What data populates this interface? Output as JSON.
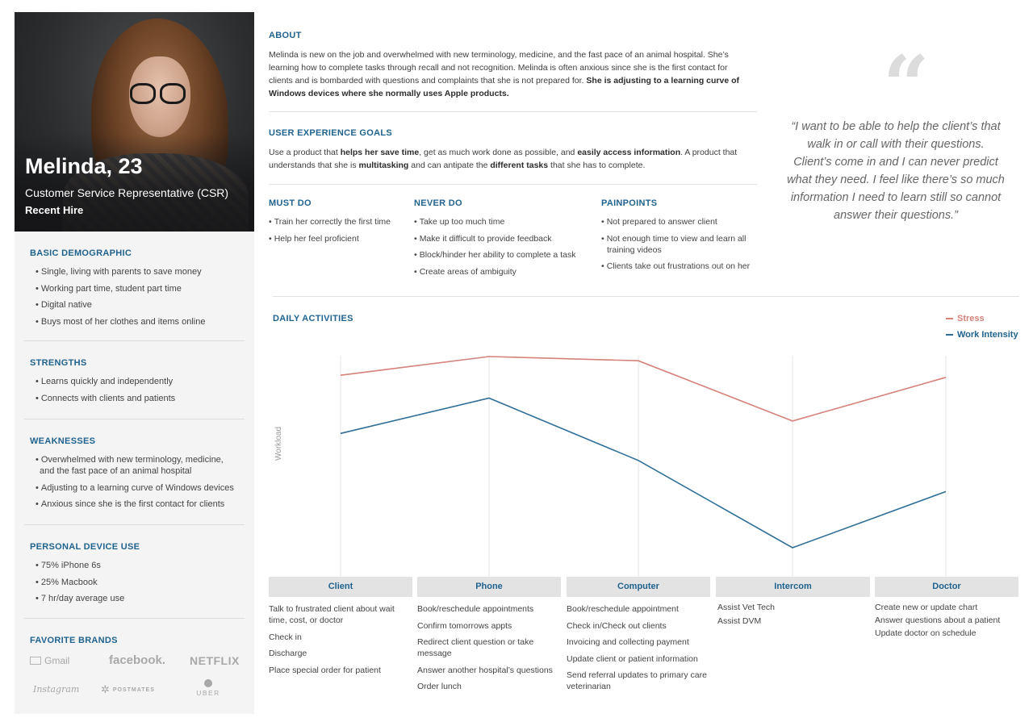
{
  "persona": {
    "name": "Melinda, 23",
    "role": "Customer Service Representative (CSR)",
    "tag": "Recent Hire"
  },
  "demographic": {
    "title": "BASIC DEMOGRAPHIC",
    "items": [
      "Single, living with parents to save money",
      "Working part time, student part time",
      "Digital native",
      "Buys most of her clothes and items online"
    ]
  },
  "strengths": {
    "title": "STRENGTHS",
    "items": [
      "Learns quickly and independently",
      "Connects with clients and patients"
    ]
  },
  "weaknesses": {
    "title": "WEAKNESSES",
    "items": [
      "Overwhelmed with new terminology, medicine, and the fast pace of an animal hospital",
      "Adjusting to a learning curve of Windows devices",
      "Anxious since she is the first contact for clients"
    ]
  },
  "devices": {
    "title": "PERSONAL DEVICE USE",
    "items": [
      "75% iPhone 6s",
      "25% Macbook",
      "7 hr/day average use"
    ]
  },
  "brands": {
    "title": "FAVORITE BRANDS",
    "gmail": "Gmail",
    "facebook": "facebook.",
    "netflix": "NETFLIX",
    "instagram": "Instagram",
    "postmates": "POSTMATES",
    "uber": "UBER"
  },
  "about": {
    "title": "ABOUT",
    "text": "Melinda is new on the job and overwhelmed with new terminology, medicine, and the fast pace of an animal hospital. She’s learning how to complete tasks through recall and not recognition. Melinda is often anxious since she is the first contact for clients and is bombarded with questions and complaints that she is not prepared for. ",
    "bold": "She is adjusting to a learning curve of Windows devices where she normally uses Apple products."
  },
  "goals": {
    "title": "USER EXPERIENCE GOALS",
    "t1": "Use a product that ",
    "b1": "helps her save time",
    "t2": ", get as much work done as possible, and ",
    "b2": "easily access information",
    "t3": ". A product that understands that she is ",
    "b3": "multitasking",
    "t4": " and can antipate the ",
    "b4": "different tasks",
    "t5": " that she has to complete."
  },
  "must_do": {
    "title": "MUST DO",
    "items": [
      "Train her correctly the first time",
      "Help her feel proficient"
    ]
  },
  "never_do": {
    "title": "NEVER DO",
    "items": [
      "Take up too much time",
      "Make it difficult to provide feedback",
      "Block/hinder her ability to complete a task",
      "Create areas of ambiguity"
    ]
  },
  "painpoints": {
    "title": "PAINPOINTS",
    "items": [
      "Not prepared to answer client",
      "Not enough time to view and learn all training videos",
      "Clients take out frustrations out on her"
    ]
  },
  "quote": "“I want to be able to help the client’s that walk in or call with their questions. Client’s come in and I can never predict what they need. I feel like there’s so much information I need to learn still so cannot answer their questions.”",
  "daily": {
    "title": "DAILY ACTIVITIES",
    "stages": [
      {
        "label": "Client",
        "activities": [
          "Talk to frustrated client about wait time, cost, or doctor",
          "Check in",
          "Discharge",
          "Place special order for patient"
        ]
      },
      {
        "label": "Phone",
        "activities": [
          "Book/reschedule appointments",
          "Confirm tomorrows appts",
          "Redirect client question or take message",
          "Answer another hospital’s questions",
          "Order lunch"
        ]
      },
      {
        "label": "Computer",
        "activities": [
          "Book/reschedule appointment",
          "Check in/Check out clients",
          "Invoicing and collecting payment",
          "Update client or patient information",
          "Send referral updates to primary care veterinarian"
        ]
      },
      {
        "label": "Intercom",
        "activities": [
          "Assist Vet Tech",
          "Assist DVM"
        ]
      },
      {
        "label": "Doctor",
        "activities": [
          "Create new or update chart",
          "Answer questions about a patient",
          "Update doctor on schedule"
        ]
      }
    ]
  },
  "chart_data": {
    "type": "line",
    "title": "DAILY ACTIVITIES",
    "xlabel": "",
    "ylabel": "Workload",
    "categories": [
      "Client",
      "Phone",
      "Computer",
      "Intercom",
      "Doctor"
    ],
    "ylim": [
      0,
      100
    ],
    "grid": "vertical",
    "legend": "top-right",
    "series": [
      {
        "name": "Stress",
        "color": "#d4827a",
        "values": [
          91,
          100,
          98,
          69,
          90
        ]
      },
      {
        "name": "Work Intensity",
        "color": "#2f6e96",
        "values": [
          63,
          80,
          50,
          8,
          35
        ]
      }
    ]
  }
}
